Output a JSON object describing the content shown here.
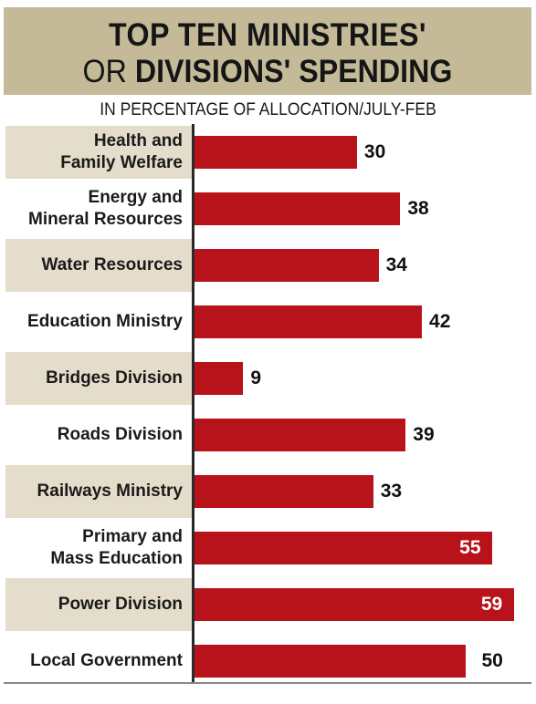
{
  "header": {
    "title_line1": "TOP TEN MINISTRIES'",
    "title_line2_prefix": "OR ",
    "title_line2_bold": "DIVISIONS' SPENDING"
  },
  "subtitle": "IN PERCENTAGE OF ALLOCATION/JULY-FEB",
  "chart_data": {
    "type": "bar",
    "orientation": "horizontal",
    "title": "TOP TEN MINISTRIES' OR DIVISIONS' SPENDING",
    "subtitle": "IN PERCENTAGE OF ALLOCATION/JULY-FEB",
    "categories": [
      [
        "Health and",
        "Family Welfare"
      ],
      [
        "Energy and",
        "Mineral Resources"
      ],
      [
        "Water Resources"
      ],
      [
        "Education Ministry"
      ],
      [
        "Bridges Division"
      ],
      [
        "Roads Division"
      ],
      [
        "Railways Ministry"
      ],
      [
        "Primary and",
        "Mass Education"
      ],
      [
        "Power Division"
      ],
      [
        "Local Government"
      ]
    ],
    "values": [
      30,
      38,
      34,
      42,
      9,
      39,
      33,
      55,
      59,
      50
    ],
    "value_labels": [
      "30",
      "38",
      "34",
      "42",
      "9",
      "39",
      "33",
      "55",
      "59",
      "50"
    ],
    "xlim": [
      0,
      60
    ],
    "grid": false,
    "colors": {
      "bar": "#b8121a",
      "header_bg": "#c4ba98",
      "label_shade": "#e4ddcb"
    }
  }
}
